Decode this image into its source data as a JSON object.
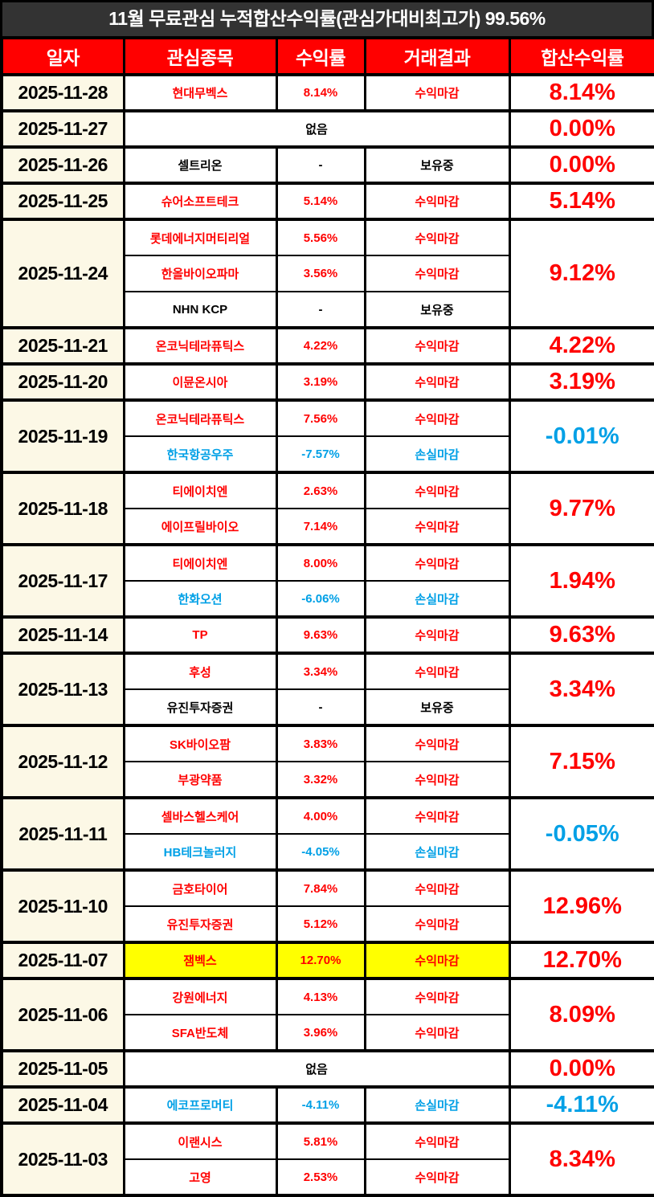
{
  "colors": {
    "title_bg": "#333333",
    "column_header_bg": "#ff0000",
    "date_column_bg": "#fcf8e6",
    "profit_text": "#ff0000",
    "loss_text": "#00a0e6",
    "hold_text": "#000000",
    "highlight_bg": "#ffff00",
    "border": "#000000"
  },
  "chart_data": {
    "type": "table",
    "title": "11월 무료관심 누적합산수익률(관심가대비최고가) 99.56%",
    "cumulative_total": "99.56%",
    "columns": [
      "일자",
      "관심종목",
      "수익률",
      "거래결과",
      "합산수익률"
    ],
    "none_label": "없음",
    "groups": [
      {
        "date": "2025-11-28",
        "total": "8.14%",
        "total_type": "profit",
        "rows": [
          {
            "name": "현대무벡스",
            "rate": "8.14%",
            "result": "수익마감",
            "type": "profit"
          }
        ]
      },
      {
        "date": "2025-11-27",
        "total": "0.00%",
        "total_type": "profit",
        "none": true
      },
      {
        "date": "2025-11-26",
        "total": "0.00%",
        "total_type": "profit",
        "rows": [
          {
            "name": "셀트리온",
            "rate": "-",
            "result": "보유중",
            "type": "hold"
          }
        ]
      },
      {
        "date": "2025-11-25",
        "total": "5.14%",
        "total_type": "profit",
        "rows": [
          {
            "name": "슈어소프트테크",
            "rate": "5.14%",
            "result": "수익마감",
            "type": "profit"
          }
        ]
      },
      {
        "date": "2025-11-24",
        "total": "9.12%",
        "total_type": "profit",
        "rows": [
          {
            "name": "롯데에너지머티리얼",
            "rate": "5.56%",
            "result": "수익마감",
            "type": "profit"
          },
          {
            "name": "한올바이오파마",
            "rate": "3.56%",
            "result": "수익마감",
            "type": "profit"
          },
          {
            "name": "NHN KCP",
            "rate": "-",
            "result": "보유중",
            "type": "hold"
          }
        ]
      },
      {
        "date": "2025-11-21",
        "total": "4.22%",
        "total_type": "profit",
        "rows": [
          {
            "name": "온코닉테라퓨틱스",
            "rate": "4.22%",
            "result": "수익마감",
            "type": "profit"
          }
        ]
      },
      {
        "date": "2025-11-20",
        "total": "3.19%",
        "total_type": "profit",
        "rows": [
          {
            "name": "이뮨온시아",
            "rate": "3.19%",
            "result": "수익마감",
            "type": "profit"
          }
        ]
      },
      {
        "date": "2025-11-19",
        "total": "-0.01%",
        "total_type": "loss",
        "rows": [
          {
            "name": "온코닉테라퓨틱스",
            "rate": "7.56%",
            "result": "수익마감",
            "type": "profit"
          },
          {
            "name": "한국항공우주",
            "rate": "-7.57%",
            "result": "손실마감",
            "type": "loss"
          }
        ]
      },
      {
        "date": "2025-11-18",
        "total": "9.77%",
        "total_type": "profit",
        "rows": [
          {
            "name": "티에이치엔",
            "rate": "2.63%",
            "result": "수익마감",
            "type": "profit"
          },
          {
            "name": "에이프릴바이오",
            "rate": "7.14%",
            "result": "수익마감",
            "type": "profit"
          }
        ]
      },
      {
        "date": "2025-11-17",
        "total": "1.94%",
        "total_type": "profit",
        "rows": [
          {
            "name": "티에이치엔",
            "rate": "8.00%",
            "result": "수익마감",
            "type": "profit"
          },
          {
            "name": "한화오션",
            "rate": "-6.06%",
            "result": "손실마감",
            "type": "loss"
          }
        ]
      },
      {
        "date": "2025-11-14",
        "total": "9.63%",
        "total_type": "profit",
        "rows": [
          {
            "name": "TP",
            "rate": "9.63%",
            "result": "수익마감",
            "type": "profit"
          }
        ]
      },
      {
        "date": "2025-11-13",
        "total": "3.34%",
        "total_type": "profit",
        "rows": [
          {
            "name": "후성",
            "rate": "3.34%",
            "result": "수익마감",
            "type": "profit"
          },
          {
            "name": "유진투자증권",
            "rate": "-",
            "result": "보유중",
            "type": "hold"
          }
        ]
      },
      {
        "date": "2025-11-12",
        "total": "7.15%",
        "total_type": "profit",
        "rows": [
          {
            "name": "SK바이오팜",
            "rate": "3.83%",
            "result": "수익마감",
            "type": "profit"
          },
          {
            "name": "부광약품",
            "rate": "3.32%",
            "result": "수익마감",
            "type": "profit"
          }
        ]
      },
      {
        "date": "2025-11-11",
        "total": "-0.05%",
        "total_type": "loss",
        "rows": [
          {
            "name": "셀바스헬스케어",
            "rate": "4.00%",
            "result": "수익마감",
            "type": "profit"
          },
          {
            "name": "HB테크놀러지",
            "rate": "-4.05%",
            "result": "손실마감",
            "type": "loss"
          }
        ]
      },
      {
        "date": "2025-11-10",
        "total": "12.96%",
        "total_type": "profit",
        "rows": [
          {
            "name": "금호타이어",
            "rate": "7.84%",
            "result": "수익마감",
            "type": "profit"
          },
          {
            "name": "유진투자증권",
            "rate": "5.12%",
            "result": "수익마감",
            "type": "profit"
          }
        ]
      },
      {
        "date": "2025-11-07",
        "total": "12.70%",
        "total_type": "profit",
        "rows": [
          {
            "name": "잼벡스",
            "rate": "12.70%",
            "result": "수익마감",
            "type": "profit",
            "highlight": true
          }
        ]
      },
      {
        "date": "2025-11-06",
        "total": "8.09%",
        "total_type": "profit",
        "rows": [
          {
            "name": "강원에너지",
            "rate": "4.13%",
            "result": "수익마감",
            "type": "profit"
          },
          {
            "name": "SFA반도체",
            "rate": "3.96%",
            "result": "수익마감",
            "type": "profit"
          }
        ]
      },
      {
        "date": "2025-11-05",
        "total": "0.00%",
        "total_type": "profit",
        "none": true
      },
      {
        "date": "2025-11-04",
        "total": "-4.11%",
        "total_type": "loss",
        "rows": [
          {
            "name": "에코프로머티",
            "rate": "-4.11%",
            "result": "손실마감",
            "type": "loss"
          }
        ]
      },
      {
        "date": "2025-11-03",
        "total": "8.34%",
        "total_type": "profit",
        "rows": [
          {
            "name": "이랜시스",
            "rate": "5.81%",
            "result": "수익마감",
            "type": "profit"
          },
          {
            "name": "고영",
            "rate": "2.53%",
            "result": "수익마감",
            "type": "profit"
          }
        ]
      }
    ]
  }
}
